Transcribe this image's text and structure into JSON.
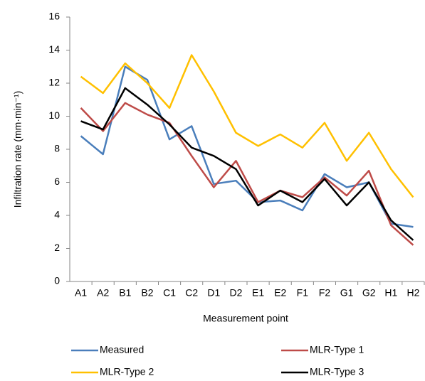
{
  "chart_data": {
    "type": "line",
    "xlabel": "Measurement point",
    "ylabel": "Infiltration rate (mm·min⁻¹)",
    "categories": [
      "A1",
      "A2",
      "B1",
      "B2",
      "C1",
      "C2",
      "D1",
      "D2",
      "E1",
      "E2",
      "F1",
      "F2",
      "G1",
      "G2",
      "H1",
      "H2"
    ],
    "series": [
      {
        "name": "Measured",
        "color": "#4a7ebb",
        "values": [
          8.8,
          7.7,
          13.0,
          12.2,
          8.6,
          9.4,
          5.9,
          6.1,
          4.8,
          4.9,
          4.3,
          6.5,
          5.7,
          6.0,
          3.5,
          3.3
        ]
      },
      {
        "name": "MLR-Type 1",
        "color": "#be4b48",
        "values": [
          10.5,
          9.1,
          10.8,
          10.1,
          9.6,
          7.6,
          5.7,
          7.3,
          4.8,
          5.5,
          5.1,
          6.3,
          5.2,
          6.7,
          3.4,
          2.2
        ]
      },
      {
        "name": "MLR-Type 2",
        "color": "#ffc000",
        "values": [
          12.4,
          11.4,
          13.2,
          12.0,
          10.5,
          13.7,
          11.5,
          9.0,
          8.2,
          8.9,
          8.1,
          9.6,
          7.3,
          9.0,
          6.8,
          5.1
        ]
      },
      {
        "name": "MLR-Type 3",
        "color": "#000000",
        "values": [
          9.7,
          9.2,
          11.7,
          10.7,
          9.5,
          8.1,
          7.6,
          6.8,
          4.6,
          5.5,
          4.8,
          6.2,
          4.6,
          6.0,
          3.7,
          2.5
        ]
      }
    ],
    "ylim": [
      0,
      16
    ],
    "yticks": [
      0,
      2,
      4,
      6,
      8,
      10,
      12,
      14,
      16
    ],
    "grid": false,
    "legend": "bottom"
  }
}
